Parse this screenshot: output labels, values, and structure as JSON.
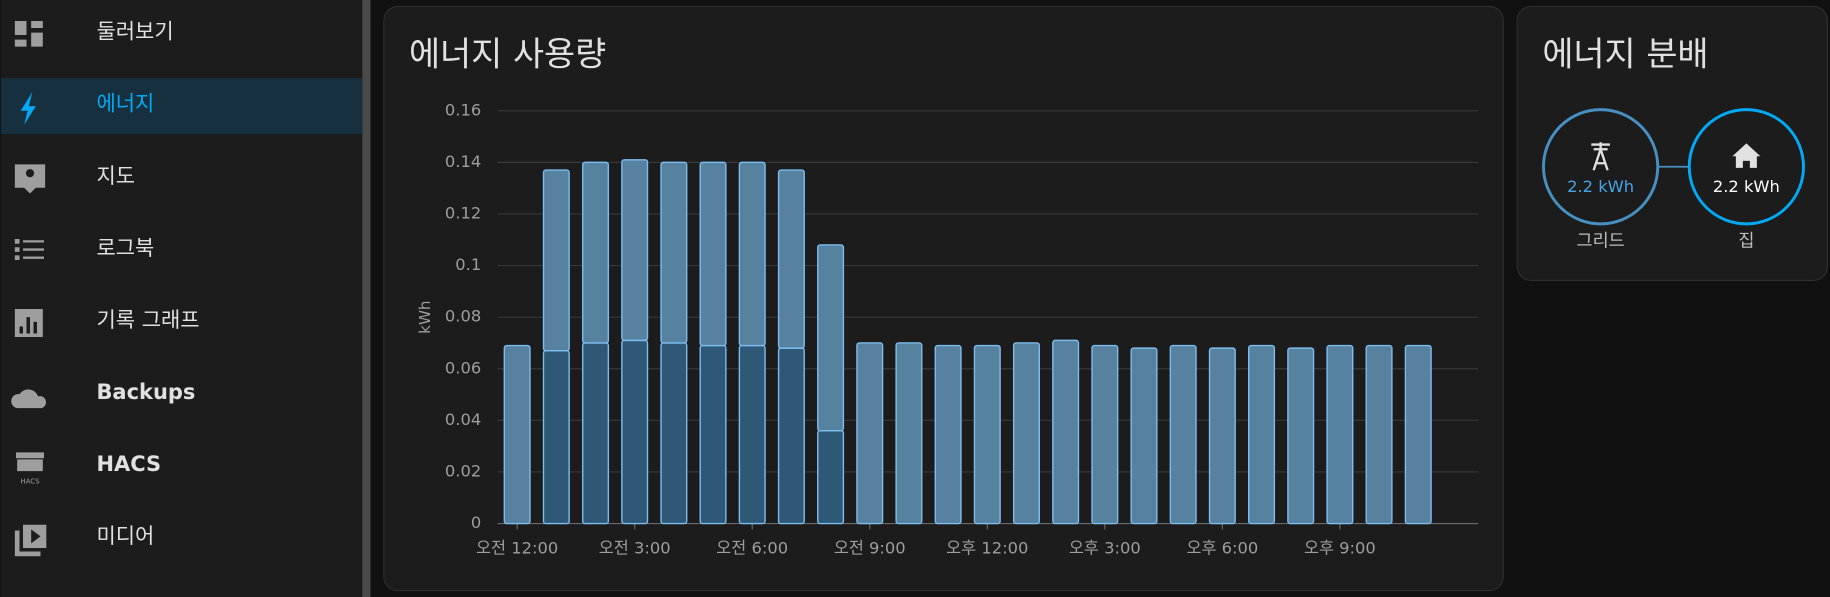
{
  "sidebar": {
    "items": [
      "둘러보기",
      "에너지",
      "지도",
      "로그북",
      "기록 그래프",
      "Backups",
      "HACS",
      "미디어"
    ],
    "hacs_icon_label": "HACS"
  },
  "chart_data": {
    "type": "bar",
    "stacked": true,
    "title": "에너지 사용량",
    "ylabel": "kWh",
    "categories": [
      "오전 12:00",
      null,
      null,
      "오전 3:00",
      null,
      null,
      "오전 6:00",
      null,
      null,
      "오전 9:00",
      null,
      null,
      "오후 12:00",
      null,
      null,
      "오후 3:00",
      null,
      null,
      "오후 6:00",
      null,
      null,
      "오후 9:00",
      null,
      null
    ],
    "series": [
      {
        "color": "#2f5876",
        "values": [
          null,
          0.067,
          0.07,
          0.071,
          0.07,
          0.069,
          0.069,
          0.068,
          0.036,
          null,
          null,
          null,
          null,
          null,
          null,
          null,
          null,
          null,
          null,
          null,
          null,
          null,
          null,
          null
        ]
      },
      {
        "color": "#56819f",
        "values": [
          0.069,
          0.07,
          0.07,
          0.07,
          0.07,
          0.071,
          0.071,
          0.069,
          0.072,
          0.07,
          0.07,
          0.069,
          0.069,
          0.07,
          0.071,
          0.069,
          0.068,
          0.069,
          0.068,
          0.069,
          0.068,
          0.069,
          0.069,
          0.069
        ]
      }
    ],
    "ylim": [
      0,
      0.16
    ],
    "yticks": [
      0,
      0.02,
      0.04,
      0.06,
      0.08,
      0.1,
      0.12,
      0.14,
      0.16
    ],
    "grid": true
  },
  "distribution": {
    "title": "에너지 분배",
    "nodes": [
      {
        "value": "2.2 kWh",
        "label": "그리드"
      },
      {
        "value": "2.2 kWh",
        "label": "집"
      }
    ]
  }
}
